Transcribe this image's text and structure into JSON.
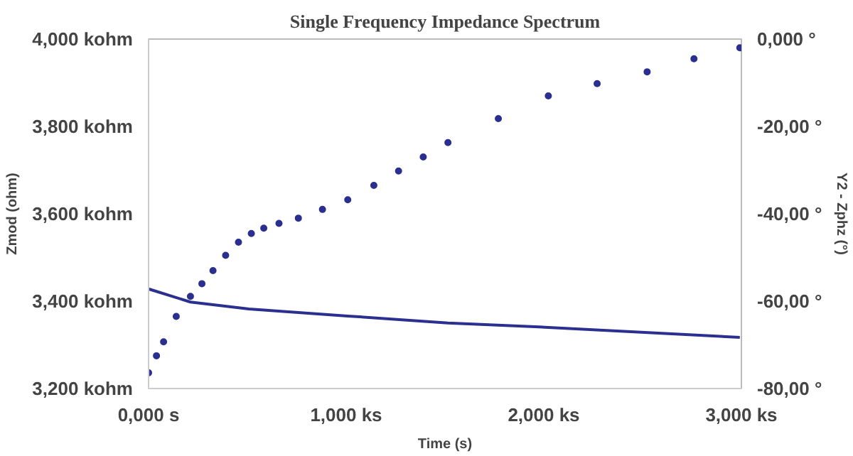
{
  "chart_data": {
    "type": "scatter",
    "title": "Single Frequency Impedance Spectrum",
    "xlabel": "Time (s)",
    "ylabel": "Zmod (ohm)",
    "y2label": "Y2 - Zphz (°)",
    "x": [
      0,
      0.04,
      0.076,
      0.14,
      0.212,
      0.27,
      0.326,
      0.39,
      0.455,
      0.52,
      0.583,
      0.66,
      0.758,
      0.88,
      1.008,
      1.14,
      1.265,
      1.39,
      1.515,
      1.77,
      2.023,
      2.27,
      2.523,
      2.76,
      2.992
    ],
    "series": [
      {
        "color": "#2b2f8f",
        "values": [
          3.236,
          3.275,
          3.307,
          3.365,
          3.411,
          3.44,
          3.47,
          3.505,
          3.535,
          3.555,
          3.567,
          3.578,
          3.59,
          3.61,
          3.632,
          3.665,
          3.698,
          3.73,
          3.763,
          3.818,
          3.87,
          3.898,
          3.925,
          3.955,
          3.98
        ]
      },
      {
        "type": "line",
        "marker": "none",
        "axis": "y2",
        "color": "#2b2f8f",
        "x": [
          0,
          0.212,
          0.508,
          1.008,
          1.515,
          2.023,
          2.992
        ],
        "values": [
          -57.2,
          -60.2,
          -61.8,
          -63.4,
          -65.0,
          -66.0,
          -68.3
        ]
      }
    ],
    "xlim": [
      0,
      3
    ],
    "xticks": [
      {
        "value": 0,
        "label": "0,000 s"
      },
      {
        "value": 1,
        "label": "1,000 ks"
      },
      {
        "value": 2,
        "label": "2,000 ks"
      },
      {
        "value": 3,
        "label": "3,000 ks"
      }
    ],
    "ylim": [
      3.2,
      4
    ],
    "yticks": [
      {
        "value": 3.2,
        "label": "3,200 kohm"
      },
      {
        "value": 3.4,
        "label": "3,400 kohm"
      },
      {
        "value": 3.6,
        "label": "3,600 kohm"
      },
      {
        "value": 3.8,
        "label": "3,800 kohm"
      },
      {
        "value": 4,
        "label": "4,000 kohm"
      }
    ],
    "y2lim": [
      -80,
      0
    ],
    "y2ticks": [
      {
        "value": -80,
        "label": "-80,00 °"
      },
      {
        "value": -60,
        "label": "-60,00 °"
      },
      {
        "value": -40,
        "label": "-40,00 °"
      },
      {
        "value": -20,
        "label": "-20,00 °"
      },
      {
        "value": 0,
        "label": "0,000 °"
      }
    ],
    "marker": "circle"
  }
}
